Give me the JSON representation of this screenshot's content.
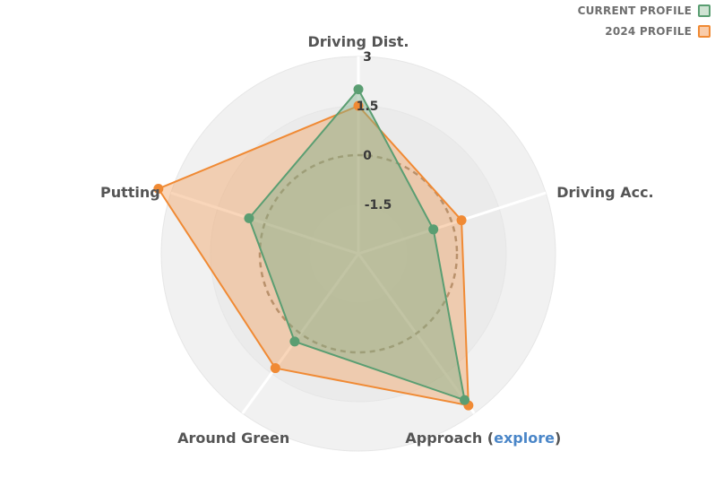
{
  "legend": {
    "items": [
      {
        "label": "CURRENT PROFILE",
        "color": "#5a9e72",
        "fill": "#cfe3d3"
      },
      {
        "label": "2024 PROFILE",
        "color": "#f08a34",
        "fill": "#f9ccaa"
      }
    ]
  },
  "chart_data": {
    "type": "radar",
    "axes": [
      {
        "label": "Driving Dist."
      },
      {
        "label": "Driving Acc."
      },
      {
        "label": "Approach (",
        "link": "explore",
        "suffix": ")"
      },
      {
        "label": "Around Green"
      },
      {
        "label": "Putting"
      }
    ],
    "ticks": [
      "3",
      "1.5",
      "0",
      "-1.5"
    ],
    "tick_values": [
      3,
      1.5,
      0,
      -1.5
    ],
    "range": [
      -3,
      3
    ],
    "reference_line": 0,
    "series": [
      {
        "name": "CURRENT PROFILE",
        "color": "#5a9e72",
        "fill": "#7fb08a",
        "values": [
          2.0,
          -0.6,
          2.5,
          0.3,
          0.5
        ]
      },
      {
        "name": "2024 PROFILE",
        "color": "#f08a34",
        "fill": "#f2a466",
        "values": [
          1.5,
          0.3,
          2.7,
          1.3,
          3.4
        ]
      }
    ]
  }
}
